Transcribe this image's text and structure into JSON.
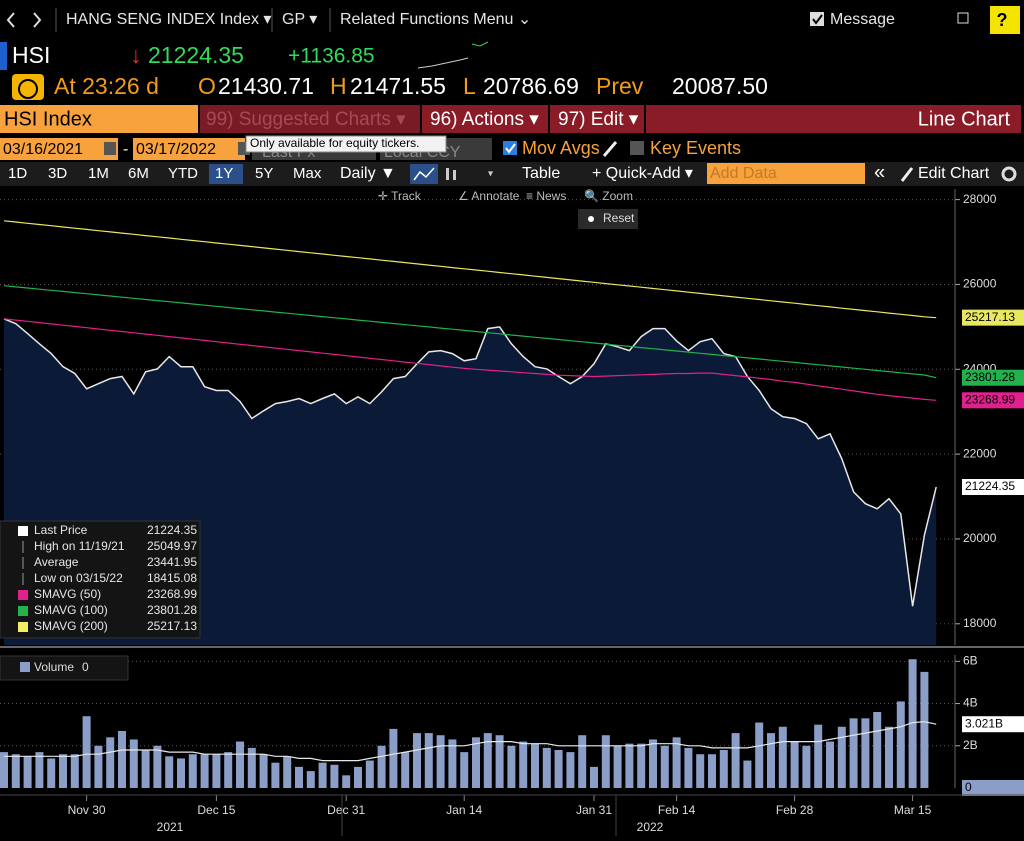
{
  "nav": {
    "security": "HANG SENG INDEX Index ▾",
    "function": "GP ▾",
    "related": "Related Functions Menu ⌄",
    "message": "Message",
    "help": "?"
  },
  "quote": {
    "ticker": "HSI",
    "arrow": "↓",
    "last": "21224.35",
    "change": "+1136.85",
    "time": "At 23:26 d",
    "open_label": "O",
    "open": "21430.71",
    "high_label": "H",
    "high": "21471.55",
    "low_label": "L",
    "low": "20786.69",
    "prev_label": "Prev",
    "prev": "20087.50"
  },
  "menu": {
    "security": "HSI Index",
    "suggested": "99) Suggested Charts ▾",
    "actions": "96) Actions ▾",
    "edit": "97) Edit ▾",
    "chart_type": "Line Chart"
  },
  "settings": {
    "start": "03/16/2021",
    "dash": "-",
    "end": "03/17/2022",
    "field": "Last Px",
    "currency": "Local CCY",
    "mov_avgs": "Mov Avgs",
    "key_events": "Key Events",
    "tooltip": "Only available for equity tickers."
  },
  "toolbar": {
    "periods": [
      "1D",
      "3D",
      "1M",
      "6M",
      "YTD",
      "1Y",
      "5Y",
      "Max"
    ],
    "selected_period": 5,
    "frequency": "Daily ▼",
    "table": "Table",
    "quick_add": "+ Quick-Add ▾",
    "add_data": "Add Data",
    "collapse": "«",
    "edit_chart": "Edit Chart"
  },
  "chart_tools": {
    "tools": [
      "✛ Track",
      "∠ Annotate",
      "≡ News",
      "🔍 Zoom"
    ],
    "reset": "Reset"
  },
  "legend": [
    {
      "label": "Last Price",
      "value": "21224.35",
      "color": "#ffffff"
    },
    {
      "label": "High on 11/19/21",
      "value": "25049.97"
    },
    {
      "label": "Average",
      "value": "23441.95"
    },
    {
      "label": "Low on 03/15/22",
      "value": "18415.08"
    },
    {
      "label": "SMAVG (50)",
      "value": "23268.99",
      "color": "#e0208c"
    },
    {
      "label": "SMAVG (100)",
      "value": "23801.28",
      "color": "#22b14c"
    },
    {
      "label": "SMAVG (200)",
      "value": "25217.13",
      "color": "#f0f060"
    }
  ],
  "chart_data": [
    {
      "type": "line",
      "ylim": [
        17500,
        28250
      ],
      "yticks": [
        18000,
        20000,
        22000,
        24000,
        26000,
        28000
      ],
      "grid": true,
      "area": true,
      "series": [
        {
          "color": "#e8e8e8",
          "values": [
            25190,
            25075,
            24840,
            24600,
            24370,
            24060,
            23900,
            23540,
            23660,
            23780,
            23830,
            23420,
            23940,
            24010,
            24300,
            24060,
            24060,
            23590,
            23500,
            23500,
            23240,
            22840,
            23020,
            23190,
            23240,
            23310,
            23190,
            23310,
            23420,
            23190,
            23350,
            23190,
            23470,
            23780,
            23830,
            24130,
            24410,
            24440,
            24370,
            24200,
            24250,
            24960,
            25000,
            24600,
            24300,
            24060,
            24010,
            23830,
            23660,
            23830,
            24130,
            24600,
            24530,
            24440,
            24770,
            24960,
            24960,
            24670,
            24440,
            24650,
            24720,
            24370,
            24300,
            23830,
            23500,
            23070,
            22880,
            22840,
            22720,
            22360,
            22480,
            21890,
            21110,
            20830,
            20710,
            20950,
            20590,
            18415.08,
            20087.5,
            21224.35
          ]
        },
        {
          "color": "#e0208c",
          "values": [
            25190,
            25160,
            25130,
            25100,
            25070,
            25040,
            25010,
            24980,
            24950,
            24920,
            24890,
            24860,
            24830,
            24800,
            24770,
            24740,
            24710,
            24680,
            24650,
            24620,
            24590,
            24560,
            24530,
            24500,
            24470,
            24440,
            24410,
            24380,
            24350,
            24320,
            24290,
            24260,
            24230,
            24200,
            24170,
            24140,
            24110,
            24080,
            24050,
            24020,
            24000,
            23980,
            23960,
            23940,
            23920,
            23900,
            23880,
            23860,
            23850,
            23840,
            23830,
            23840,
            23850,
            23860,
            23870,
            23880,
            23890,
            23900,
            23900,
            23910,
            23910,
            23880,
            23850,
            23820,
            23790,
            23760,
            23720,
            23690,
            23650,
            23610,
            23570,
            23530,
            23490,
            23450,
            23410,
            23380,
            23350,
            23320,
            23290,
            23268.99
          ]
        },
        {
          "color": "#22b14c",
          "values": [
            25970,
            25943,
            25916,
            25889,
            25862,
            25835,
            25808,
            25781,
            25754,
            25727,
            25700,
            25673,
            25646,
            25619,
            25592,
            25565,
            25538,
            25511,
            25484,
            25457,
            25430,
            25403,
            25376,
            25349,
            25322,
            25295,
            25268,
            25241,
            25214,
            25187,
            25160,
            25133,
            25106,
            25079,
            25052,
            25025,
            24998,
            24971,
            24944,
            24917,
            24890,
            24863,
            24836,
            24809,
            24782,
            24755,
            24728,
            24701,
            24674,
            24647,
            24620,
            24593,
            24566,
            24539,
            24512,
            24485,
            24458,
            24431,
            24404,
            24377,
            24350,
            24323,
            24296,
            24269,
            24242,
            24215,
            24188,
            24161,
            24134,
            24107,
            24080,
            24053,
            24026,
            23999,
            23972,
            23945,
            23918,
            23891,
            23864,
            23801.28
          ]
        },
        {
          "color": "#e8e860",
          "values": [
            27500,
            27471,
            27442,
            27413,
            27384,
            27355,
            27326,
            27297,
            27268,
            27239,
            27210,
            27181,
            27152,
            27123,
            27094,
            27065,
            27036,
            27007,
            26978,
            26949,
            26920,
            26891,
            26862,
            26833,
            26804,
            26775,
            26746,
            26717,
            26688,
            26659,
            26630,
            26601,
            26572,
            26543,
            26514,
            26485,
            26456,
            26427,
            26398,
            26369,
            26340,
            26311,
            26282,
            26253,
            26224,
            26195,
            26166,
            26137,
            26108,
            26079,
            26050,
            26021,
            25992,
            25963,
            25934,
            25905,
            25876,
            25847,
            25818,
            25789,
            25760,
            25731,
            25702,
            25673,
            25644,
            25615,
            25586,
            25557,
            25528,
            25499,
            25470,
            25441,
            25412,
            25383,
            25354,
            25325,
            25296,
            25267,
            25238,
            25217.13
          ]
        }
      ]
    },
    {
      "type": "bar",
      "ylim": [
        0,
        6.3
      ],
      "yticks": [
        {
          "value": 2,
          "label": "2B"
        },
        {
          "value": 4,
          "label": "4B"
        },
        {
          "value": 6,
          "label": "6B"
        }
      ],
      "grid": true,
      "legend": "Volume",
      "categories": [
        null,
        null,
        null,
        null,
        null,
        null,
        null,
        "Nov 30",
        null,
        null,
        null,
        null,
        null,
        null,
        null,
        null,
        null,
        null,
        "Dec 15",
        null,
        null,
        null,
        null,
        null,
        null,
        null,
        null,
        null,
        null,
        "Dec 31",
        null,
        null,
        null,
        null,
        null,
        null,
        null,
        null,
        null,
        "Jan 14",
        null,
        null,
        null,
        null,
        null,
        null,
        null,
        null,
        null,
        null,
        "Jan 31",
        null,
        null,
        null,
        null,
        null,
        null,
        "Feb 14",
        null,
        null,
        null,
        null,
        null,
        null,
        null,
        null,
        null,
        "Feb 28",
        null,
        null,
        null,
        null,
        null,
        null,
        null,
        null,
        null,
        "Mar 15",
        null,
        null
      ],
      "years": [
        "2021",
        "2022"
      ],
      "series": [
        {
          "color": "#8a9ec8",
          "values": [
            1.7,
            1.6,
            1.5,
            1.7,
            1.4,
            1.6,
            1.6,
            3.4,
            2.0,
            2.4,
            2.7,
            2.3,
            1.8,
            2.0,
            1.5,
            1.4,
            1.6,
            1.6,
            1.6,
            1.7,
            2.2,
            1.9,
            1.6,
            1.2,
            1.5,
            1.0,
            0.8,
            1.2,
            1.1,
            0.6,
            1.0,
            1.3,
            2.0,
            2.8,
            1.7,
            2.6,
            2.6,
            2.5,
            2.3,
            1.7,
            2.4,
            2.6,
            2.5,
            2.0,
            2.2,
            2.1,
            1.9,
            1.8,
            1.7,
            2.5,
            1.0,
            2.5,
            2.0,
            2.1,
            2.1,
            2.3,
            2.0,
            2.4,
            1.9,
            1.6,
            1.6,
            1.8,
            2.6,
            1.3,
            3.1,
            2.6,
            2.9,
            2.2,
            2.0,
            3.0,
            2.2,
            2.9,
            3.3,
            3.3,
            3.6,
            2.9,
            4.1,
            6.1,
            5.5,
            0
          ]
        },
        {
          "type": "line",
          "color": "#e8e8e8",
          "values": [
            1.5,
            1.5,
            1.5,
            1.5,
            1.5,
            1.5,
            1.5,
            1.6,
            1.6,
            1.7,
            1.8,
            1.8,
            1.8,
            1.8,
            1.7,
            1.7,
            1.7,
            1.6,
            1.6,
            1.6,
            1.6,
            1.6,
            1.6,
            1.5,
            1.5,
            1.4,
            1.4,
            1.3,
            1.3,
            1.3,
            1.3,
            1.4,
            1.5,
            1.6,
            1.7,
            1.8,
            1.9,
            2.0,
            2.0,
            2.0,
            2.1,
            2.2,
            2.2,
            2.2,
            2.1,
            2.1,
            2.1,
            2.0,
            2.0,
            2.0,
            2.0,
            2.0,
            2.0,
            2.0,
            2.0,
            2.1,
            2.1,
            2.1,
            2.0,
            2.0,
            1.9,
            1.9,
            1.9,
            1.9,
            2.0,
            2.1,
            2.2,
            2.2,
            2.2,
            2.2,
            2.3,
            2.4,
            2.5,
            2.6,
            2.7,
            2.8,
            2.9,
            3.1,
            3.14,
            3.021
          ],
          "value_labels": [
            null,
            null,
            null,
            null,
            null,
            null,
            null,
            null,
            null,
            null,
            null,
            null,
            null,
            null,
            null,
            null,
            null,
            null,
            null,
            null,
            null,
            null,
            null,
            null,
            null,
            null,
            null,
            null,
            null,
            null,
            null,
            null,
            null,
            null,
            null,
            null,
            null,
            null,
            null,
            null,
            null,
            null,
            null,
            null,
            null,
            null,
            null,
            null,
            null,
            null,
            null,
            null,
            null,
            null,
            null,
            null,
            null,
            null,
            null,
            null,
            null,
            null,
            null,
            null,
            null,
            null,
            null,
            null,
            null,
            null,
            null,
            null,
            null,
            null,
            null,
            null,
            null,
            null,
            null,
            "3.021B"
          ]
        }
      ]
    }
  ]
}
